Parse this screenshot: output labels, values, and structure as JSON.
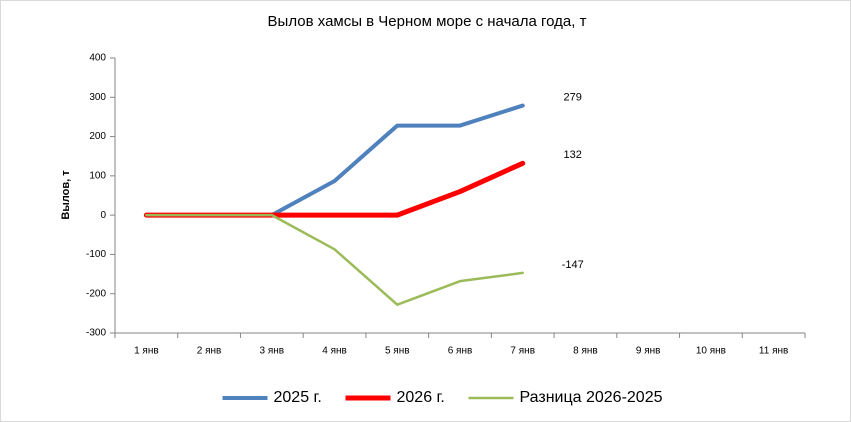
{
  "chart_data": {
    "type": "line",
    "title": "Вылов хамсы в Черном море с начала года, т",
    "y_label": "Вылов, т",
    "categories": [
      "1 янв",
      "2 янв",
      "3 янв",
      "4 янв",
      "5 янв",
      "6 янв",
      "7 янв",
      "8 янв",
      "9 янв",
      "10 янв",
      "11 янв"
    ],
    "series": [
      {
        "name": "2025 г.",
        "color": "#4f81bd",
        "width": 4,
        "label_color": "#000000",
        "values": [
          0,
          0,
          0,
          87,
          228,
          228,
          279,
          null,
          null,
          null,
          null
        ]
      },
      {
        "name": "2026 г.",
        "color": "#ff0000",
        "width": 5,
        "label_color": "#000000",
        "values": [
          0,
          0,
          0,
          0,
          0,
          60,
          132,
          null,
          null,
          null,
          null
        ]
      },
      {
        "name": "Разница 2026-2025",
        "color": "#9bbb59",
        "width": 2.5,
        "label_color": "#c00000",
        "values": [
          0,
          0,
          0,
          -87,
          -228,
          -168,
          -147,
          null,
          null,
          null,
          null
        ]
      }
    ],
    "ylim": [
      -300,
      400
    ],
    "yticks": [
      -300,
      -200,
      -100,
      0,
      100,
      200,
      300,
      400
    ],
    "legend": "bottom"
  }
}
